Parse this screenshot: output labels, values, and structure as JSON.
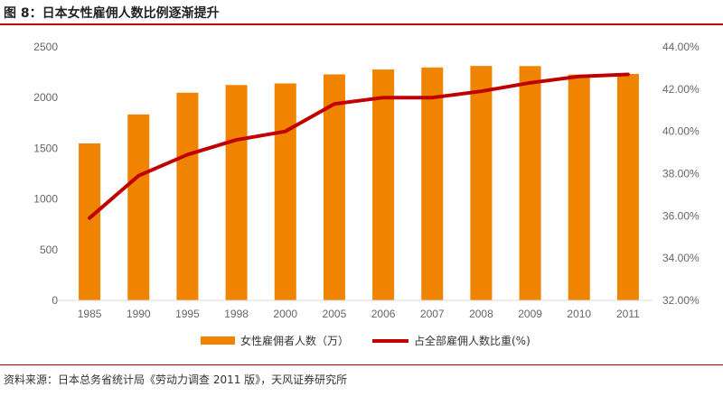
{
  "title": "图 8：日本女性雇佣人数比例逐渐提升",
  "source": "资料来源：日本总务省统计局《劳动力调查 2011 版》，天风证券研究所",
  "chart_data": {
    "type": "bar+line",
    "categories": [
      "1985",
      "1990",
      "1995",
      "1998",
      "2000",
      "2005",
      "2006",
      "2007",
      "2008",
      "2009",
      "2010",
      "2011"
    ],
    "series": [
      {
        "name": "女性雇佣者人数（万）",
        "type": "bar",
        "axis": "left",
        "color": "#f08300",
        "values": [
          1548,
          1834,
          2048,
          2124,
          2140,
          2229,
          2277,
          2297,
          2312,
          2311,
          2227,
          2233
        ]
      },
      {
        "name": "占全部雇佣人数比重(%)",
        "type": "line",
        "axis": "right",
        "color": "#c00000",
        "values": [
          35.9,
          37.9,
          38.9,
          39.6,
          40.0,
          41.3,
          41.6,
          41.6,
          41.9,
          42.3,
          42.6,
          42.7
        ]
      }
    ],
    "y_left": {
      "range": [
        0,
        2500
      ],
      "ticks": [
        "0",
        "500",
        "1000",
        "1500",
        "2000",
        "2500"
      ]
    },
    "y_right": {
      "range": [
        32,
        44
      ],
      "ticks": [
        "32.00%",
        "34.00%",
        "36.00%",
        "38.00%",
        "40.00%",
        "42.00%",
        "44.00%"
      ]
    },
    "grid": false,
    "legend_position": "bottom"
  }
}
